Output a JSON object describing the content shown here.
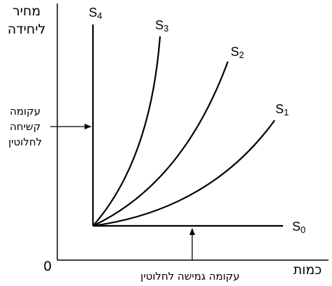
{
  "axes": {
    "y_label_line1": "מחיר",
    "y_label_line2": "ליחידה",
    "x_label": "כמות",
    "origin": "0"
  },
  "curves": [
    {
      "symbol": "S",
      "subscript": "0"
    },
    {
      "symbol": "S",
      "subscript": "1"
    },
    {
      "symbol": "S",
      "subscript": "2"
    },
    {
      "symbol": "S",
      "subscript": "3"
    },
    {
      "symbol": "S",
      "subscript": "4"
    }
  ],
  "annotations": {
    "rigid": [
      "עקומה",
      "קשיחה",
      "לחלוטין"
    ],
    "elastic": "עקומה גמישה לחלוטין"
  }
}
